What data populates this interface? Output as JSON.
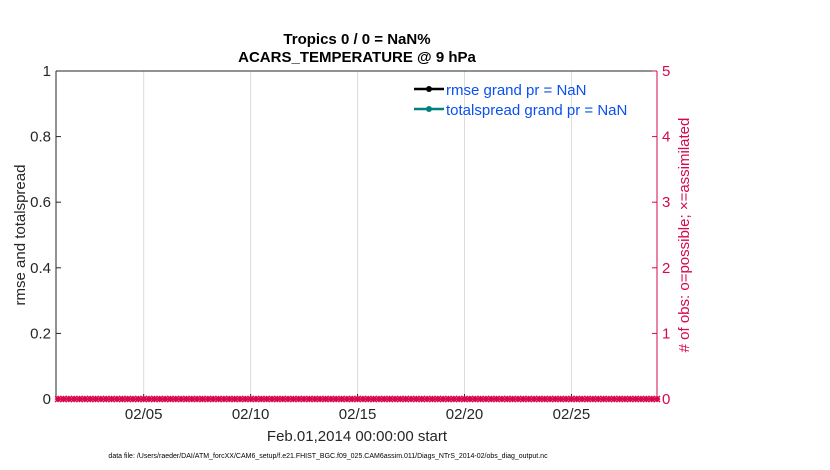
{
  "chart_data": {
    "type": "line",
    "title": [
      "Tropics 0 / 0 = NaN%",
      "ACARS_TEMPERATURE @ 9 hPa"
    ],
    "xlabel": "Feb.01,2014 00:00:00 start",
    "ylabel": "rmse and totalspread",
    "y2label": "# of obs: o=possible; ×=assimilated",
    "x_range_days_of_feb_2014": [
      0.9,
      29
    ],
    "xticks": [
      {
        "day": 5,
        "label": "02/05"
      },
      {
        "day": 10,
        "label": "02/10"
      },
      {
        "day": 15,
        "label": "02/15"
      },
      {
        "day": 20,
        "label": "02/20"
      },
      {
        "day": 25,
        "label": "02/25"
      }
    ],
    "ylim": [
      0,
      1
    ],
    "yticks": [
      "0",
      "0.2",
      "0.4",
      "0.6",
      "0.8",
      "1"
    ],
    "y2lim": [
      0,
      5
    ],
    "y2ticks": [
      "0",
      "1",
      "2",
      "3",
      "4",
      "5"
    ],
    "grid": "vertical",
    "legend_placement": "top-right",
    "series": [
      {
        "name": "rmse grand pr = NaN",
        "color": "#000000",
        "values": "NaN"
      },
      {
        "name": "totalspread grand pr = NaN",
        "color": "#008080",
        "values": "NaN"
      },
      {
        "axis": "right",
        "color": "#d6084f",
        "observations_possible": 0,
        "observations_assimilated": 0,
        "interval_hours": 6,
        "from_day": 1,
        "to_day": 29
      }
    ]
  },
  "footer": "data file: /Users/raeder/DAI/ATM_forcXX/CAM6_setup/f.e21.FHIST_BGC.f09_025.CAM6assim.011/Diags_NTrS_2014-02/obs_diag_output.nc"
}
